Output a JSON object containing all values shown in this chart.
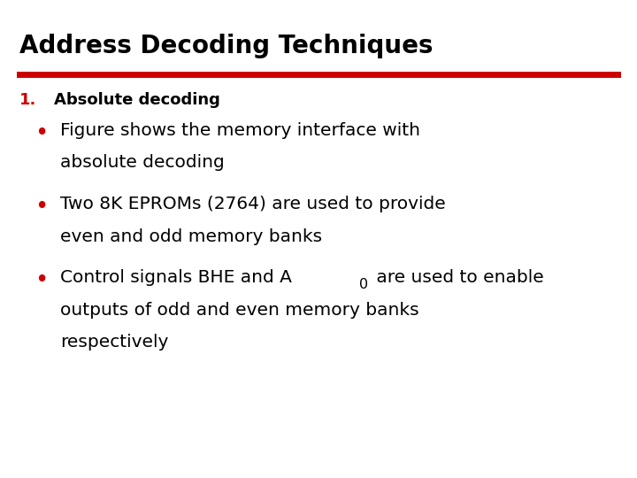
{
  "title": "Address Decoding Techniques",
  "title_color": "#000000",
  "title_fontsize": 20,
  "red_line_color": "#CC0000",
  "red_line_thickness": 5,
  "section_label": "1.",
  "section_label_color": "#CC0000",
  "section_text": "Absolute decoding",
  "section_text_color": "#000000",
  "section_fontsize": 13,
  "bullet_color": "#CC0000",
  "bullets": [
    {
      "lines": [
        "Figure shows the memory interface with",
        "absolute decoding"
      ]
    },
    {
      "lines": [
        "Two 8K EPROMs (2764) are used to provide",
        "even and odd memory banks"
      ]
    },
    {
      "lines_parts": [
        [
          {
            "text": "Control signals BHE and A",
            "style": "normal"
          },
          {
            "text": "0",
            "style": "subscript"
          },
          {
            "text": " are used to enable",
            "style": "normal"
          }
        ],
        [
          {
            "text": "outputs of odd and even memory banks",
            "style": "normal"
          }
        ],
        [
          {
            "text": "respectively",
            "style": "normal"
          }
        ]
      ]
    }
  ],
  "bullet_fontsize": 14.5,
  "background_color": "#ffffff",
  "text_color": "#000000"
}
